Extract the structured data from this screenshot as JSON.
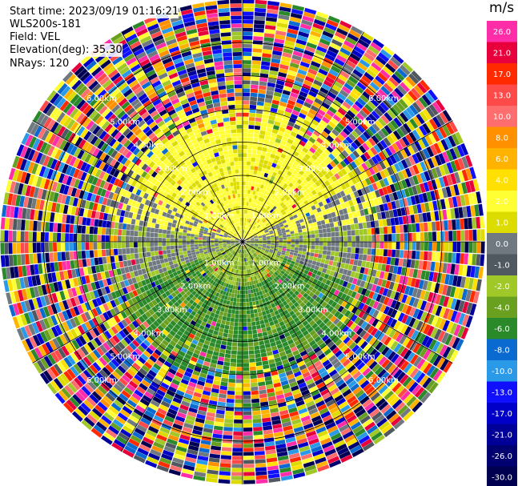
{
  "header": {
    "start_time": "Start time: 2023/09/19 01:16:21",
    "station": "WLS200s-181",
    "field": "Field: VEL",
    "elevation": "Elevation(deg): 35.30",
    "nrays": "NRays: 120"
  },
  "colorbar": {
    "unit": "m/s",
    "levels": [
      {
        "label": "26.0",
        "color": "#ff2da8"
      },
      {
        "label": "21.0",
        "color": "#e8003c"
      },
      {
        "label": "17.0",
        "color": "#ff2a00"
      },
      {
        "label": "13.0",
        "color": "#ff4a4a"
      },
      {
        "label": "10.0",
        "color": "#ff6e6e"
      },
      {
        "label": "8.0",
        "color": "#ff9000"
      },
      {
        "label": "6.0",
        "color": "#ffb300"
      },
      {
        "label": "4.0",
        "color": "#ffe000"
      },
      {
        "label": "2.0",
        "color": "#ffff33"
      },
      {
        "label": "1.0",
        "color": "#dcdc00"
      },
      {
        "label": "0.0",
        "color": "#707880"
      },
      {
        "label": "-1.0",
        "color": "#505860"
      },
      {
        "label": "-2.0",
        "color": "#a0c828"
      },
      {
        "label": "-4.0",
        "color": "#6aa020"
      },
      {
        "label": "-6.0",
        "color": "#2a8a2a"
      },
      {
        "label": "-8.0",
        "color": "#0a6ad0"
      },
      {
        "label": "-10.0",
        "color": "#2a9ae8"
      },
      {
        "label": "-13.0",
        "color": "#1010ff"
      },
      {
        "label": "-17.0",
        "color": "#0000c8"
      },
      {
        "label": "-21.0",
        "color": "#000098"
      },
      {
        "label": "-26.0",
        "color": "#000070"
      },
      {
        "label": "-30.0",
        "color": "#000050"
      }
    ]
  },
  "chart_data": {
    "type": "heatmap",
    "projection": "polar PPI",
    "field": "VEL",
    "unit": "m/s",
    "n_rays": 120,
    "ring_labels": [
      "1.00km",
      "2.00km",
      "3.00km",
      "4.00km",
      "5.00km",
      "6.00km"
    ],
    "ring_ranges_km": [
      1,
      2,
      3,
      4,
      5,
      6
    ],
    "radial_extent_km": 7.3,
    "spoke_step_deg": 30,
    "velocity_pattern": [
      {
        "region": "north",
        "range_km": [
          0,
          3
        ],
        "dominant_values": [
          2.0,
          4.0,
          6.0
        ]
      },
      {
        "region": "south",
        "range_km": [
          0,
          3.5
        ],
        "dominant_values": [
          -2.0,
          -4.0,
          -6.0
        ]
      },
      {
        "region": "east and west",
        "range_km": [
          0,
          3.5
        ],
        "dominant_values": [
          0.0,
          -1.0
        ]
      },
      {
        "region": "all",
        "range_km": [
          4,
          7.3
        ],
        "dominant_values": [
          "noise, all classes"
        ]
      }
    ]
  }
}
